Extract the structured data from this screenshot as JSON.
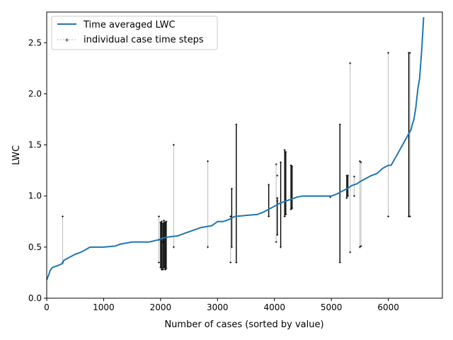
{
  "chart_data": {
    "type": "line",
    "xlabel": "Number of cases (sorted by value)",
    "ylabel": "LWC",
    "xlim": [
      0,
      6950
    ],
    "ylim": [
      0,
      2.8
    ],
    "xticks": [
      0,
      1000,
      2000,
      3000,
      4000,
      5000,
      6000
    ],
    "yticks": [
      0.0,
      0.5,
      1.0,
      1.5,
      2.0,
      2.5
    ],
    "xtick_labels": [
      "0",
      "1000",
      "2000",
      "3000",
      "4000",
      "5000",
      "6000"
    ],
    "ytick_labels": [
      "0.0",
      "0.5",
      "1.0",
      "1.5",
      "2.0",
      "2.5"
    ],
    "grid": false,
    "legend": "upper-left",
    "series": [
      {
        "name": "Time averaged LWC",
        "color": "#1f77b4",
        "style": "line",
        "x": [
          0,
          30,
          60,
          100,
          200,
          280,
          300,
          400,
          500,
          600,
          700,
          760,
          800,
          1000,
          1200,
          1300,
          1400,
          1500,
          1600,
          1800,
          1950,
          2050,
          2150,
          2300,
          2400,
          2500,
          2600,
          2700,
          2800,
          2900,
          3000,
          3100,
          3200,
          3300,
          3500,
          3700,
          3800,
          3900,
          4000,
          4100,
          4200,
          4300,
          4400,
          4500,
          4700,
          5000,
          5100,
          5200,
          5300,
          5350,
          5400,
          5450,
          5500,
          5600,
          5700,
          5800,
          5900,
          6000,
          6050,
          6100,
          6150,
          6200,
          6250,
          6300,
          6350,
          6400,
          6420,
          6450,
          6480,
          6500,
          6520,
          6550,
          6570,
          6590,
          6600,
          6610,
          6620
        ],
        "y": [
          0.18,
          0.22,
          0.27,
          0.3,
          0.32,
          0.34,
          0.37,
          0.4,
          0.43,
          0.45,
          0.48,
          0.5,
          0.5,
          0.5,
          0.51,
          0.53,
          0.54,
          0.55,
          0.55,
          0.55,
          0.57,
          0.59,
          0.6,
          0.61,
          0.63,
          0.65,
          0.67,
          0.69,
          0.7,
          0.71,
          0.75,
          0.75,
          0.77,
          0.8,
          0.81,
          0.82,
          0.84,
          0.87,
          0.9,
          0.93,
          0.95,
          0.97,
          0.99,
          1.0,
          1.0,
          1.0,
          1.02,
          1.05,
          1.08,
          1.1,
          1.11,
          1.12,
          1.14,
          1.17,
          1.2,
          1.22,
          1.27,
          1.3,
          1.3,
          1.35,
          1.4,
          1.45,
          1.5,
          1.55,
          1.6,
          1.65,
          1.7,
          1.75,
          1.85,
          1.95,
          2.05,
          2.15,
          2.3,
          2.45,
          2.55,
          2.65,
          2.75
        ]
      },
      {
        "name": "individual case time steps",
        "color": "#000000",
        "style": "marker-plus-vertical-ranges",
        "ranges": [
          {
            "x": 280,
            "min": 0.35,
            "max": 0.8,
            "color": "#bbbbbb"
          },
          {
            "x": 1970,
            "min": 0.35,
            "max": 0.8,
            "color": "#bbbbbb"
          },
          {
            "x": 2000,
            "min": 0.3,
            "max": 0.74,
            "color": "#000000"
          },
          {
            "x": 2020,
            "min": 0.28,
            "max": 0.75,
            "color": "#000000"
          },
          {
            "x": 2040,
            "min": 0.28,
            "max": 0.73,
            "color": "#000000"
          },
          {
            "x": 2060,
            "min": 0.3,
            "max": 0.76,
            "color": "#000000"
          },
          {
            "x": 2080,
            "min": 0.28,
            "max": 0.74,
            "color": "#000000"
          },
          {
            "x": 2100,
            "min": 0.29,
            "max": 0.75,
            "color": "#000000"
          },
          {
            "x": 2230,
            "min": 0.5,
            "max": 1.5,
            "color": "#bbbbbb"
          },
          {
            "x": 2830,
            "min": 0.5,
            "max": 1.34,
            "color": "#bbbbbb"
          },
          {
            "x": 3230,
            "min": 0.35,
            "max": 0.8,
            "color": "#bbbbbb"
          },
          {
            "x": 3250,
            "min": 0.5,
            "max": 1.07,
            "color": "#000000"
          },
          {
            "x": 3330,
            "min": 0.35,
            "max": 1.7,
            "color": "#000000"
          },
          {
            "x": 3900,
            "min": 0.8,
            "max": 1.11,
            "color": "#000000"
          },
          {
            "x": 4030,
            "min": 0.55,
            "max": 1.31,
            "color": "#bbbbbb"
          },
          {
            "x": 4050,
            "min": 0.62,
            "max": 0.98,
            "color": "#000000"
          },
          {
            "x": 4110,
            "min": 0.5,
            "max": 1.33,
            "color": "#000000"
          },
          {
            "x": 4180,
            "min": 0.8,
            "max": 1.45,
            "color": "#000000"
          },
          {
            "x": 4200,
            "min": 0.82,
            "max": 1.43,
            "color": "#000000"
          },
          {
            "x": 4290,
            "min": 0.87,
            "max": 1.3,
            "color": "#000000"
          },
          {
            "x": 4310,
            "min": 0.88,
            "max": 1.29,
            "color": "#000000"
          },
          {
            "x": 5150,
            "min": 0.35,
            "max": 1.7,
            "color": "#000000"
          },
          {
            "x": 5270,
            "min": 0.98,
            "max": 1.2,
            "color": "#000000"
          },
          {
            "x": 5290,
            "min": 1.0,
            "max": 1.2,
            "color": "#000000"
          },
          {
            "x": 5330,
            "min": 0.45,
            "max": 2.3,
            "color": "#bbbbbb"
          },
          {
            "x": 5400,
            "min": 1.0,
            "max": 1.19,
            "color": "#bbbbbb"
          },
          {
            "x": 5500,
            "min": 0.5,
            "max": 1.34,
            "color": "#bbbbbb"
          },
          {
            "x": 5520,
            "min": 0.51,
            "max": 1.33,
            "color": "#bbbbbb"
          },
          {
            "x": 6000,
            "min": 0.8,
            "max": 2.4,
            "color": "#bbbbbb"
          },
          {
            "x": 6360,
            "min": 0.8,
            "max": 2.4,
            "color": "#000000"
          },
          {
            "x": 6380,
            "min": 0.8,
            "max": 2.4,
            "color": "#bbbbbb"
          }
        ],
        "extra_points": [
          {
            "x": 1970,
            "y": 0.57
          },
          {
            "x": 2050,
            "y": 0.55
          },
          {
            "x": 4050,
            "y": 1.2
          },
          {
            "x": 4050,
            "y": 0.95
          },
          {
            "x": 4980,
            "y": 0.99
          }
        ]
      }
    ]
  }
}
